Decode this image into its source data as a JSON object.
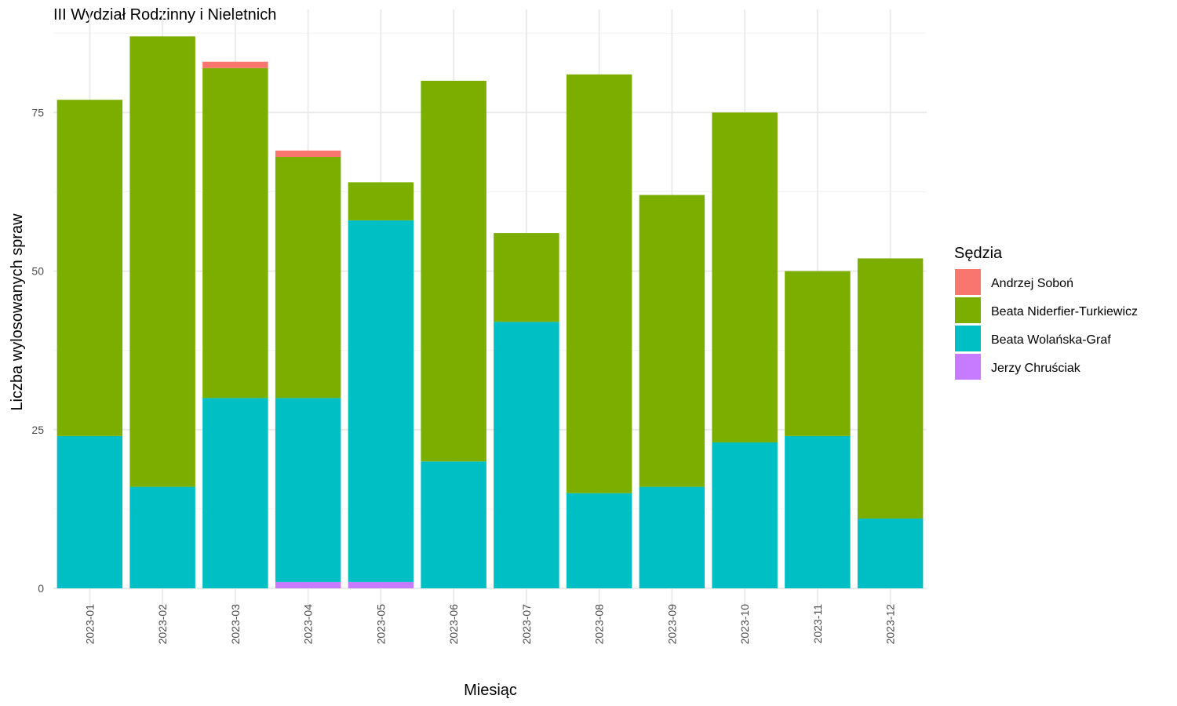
{
  "chart_data": {
    "type": "bar",
    "stacked": true,
    "title": "III Wydział Rodzinny i Nieletnich",
    "xlabel": "Miesiąc",
    "ylabel": "Liczba wylosowanych spraw",
    "ylim": [
      0,
      88
    ],
    "yticks": [
      0,
      25,
      50,
      75
    ],
    "grid": true,
    "legend_title": "Sędzia",
    "legend_position": "right",
    "categories": [
      "2023-01",
      "2023-02",
      "2023-03",
      "2023-04",
      "2023-05",
      "2023-06",
      "2023-07",
      "2023-08",
      "2023-09",
      "2023-10",
      "2023-11",
      "2023-12"
    ],
    "series": [
      {
        "name": "Jerzy Chruściak",
        "color": "#C77CFF",
        "values": [
          0,
          0,
          0,
          1,
          1,
          0,
          0,
          0,
          0,
          0,
          0,
          0
        ]
      },
      {
        "name": "Beata Wolańska-Graf",
        "color": "#00BFC4",
        "values": [
          24,
          16,
          30,
          29,
          57,
          20,
          42,
          15,
          16,
          23,
          24,
          11
        ]
      },
      {
        "name": "Beata Niderfier-Turkiewicz",
        "color": "#7CAE00",
        "values": [
          53,
          71,
          52,
          38,
          6,
          60,
          14,
          66,
          46,
          52,
          26,
          41
        ]
      },
      {
        "name": "Andrzej Soboń",
        "color": "#F8766D",
        "values": [
          0,
          0,
          1,
          1,
          0,
          0,
          0,
          0,
          0,
          0,
          0,
          0
        ]
      }
    ],
    "legend_order": [
      "Andrzej Soboń",
      "Beata Niderfier-Turkiewicz",
      "Beata Wolańska-Graf",
      "Jerzy Chruściak"
    ]
  }
}
